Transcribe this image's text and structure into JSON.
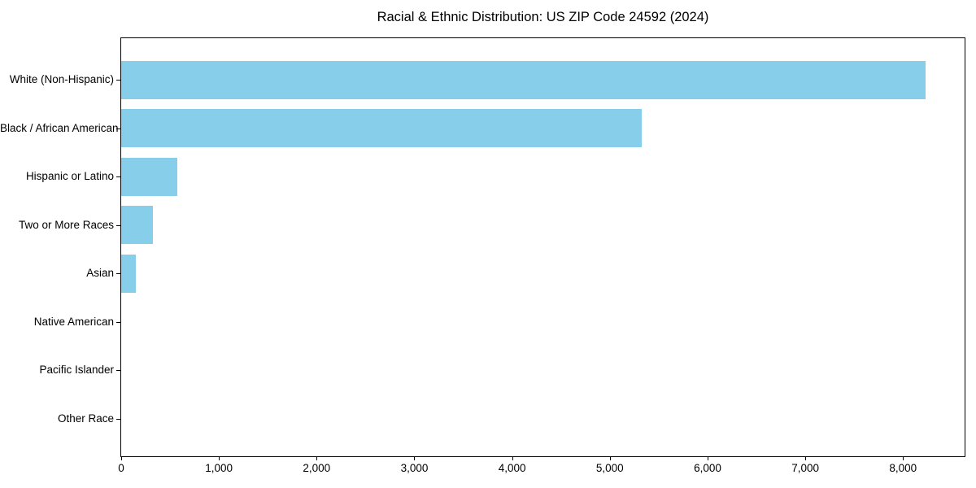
{
  "chart_data": {
    "type": "bar",
    "orientation": "horizontal",
    "title": "Racial & Ethnic Distribution: US ZIP Code 24592 (2024)",
    "categories": [
      "White (Non-Hispanic)",
      "Black / African American",
      "Hispanic or Latino",
      "Two or More Races",
      "Asian",
      "Native American",
      "Pacific Islander",
      "Other Race"
    ],
    "values": [
      8230,
      5330,
      575,
      325,
      150,
      0,
      0,
      0
    ],
    "xlabel": "",
    "ylabel": "",
    "xlim": [
      0,
      8630
    ],
    "x_ticks": [
      0,
      1000,
      2000,
      3000,
      4000,
      5000,
      6000,
      7000,
      8000
    ],
    "x_tick_labels": [
      "0",
      "1,000",
      "2,000",
      "3,000",
      "4,000",
      "5,000",
      "6,000",
      "7,000",
      "8,000"
    ],
    "bar_color": "#87CEEB",
    "background_color": "#FFFFFF",
    "axis_color": "#000000",
    "text_color": "#000000",
    "grid": false,
    "legend": false
  }
}
